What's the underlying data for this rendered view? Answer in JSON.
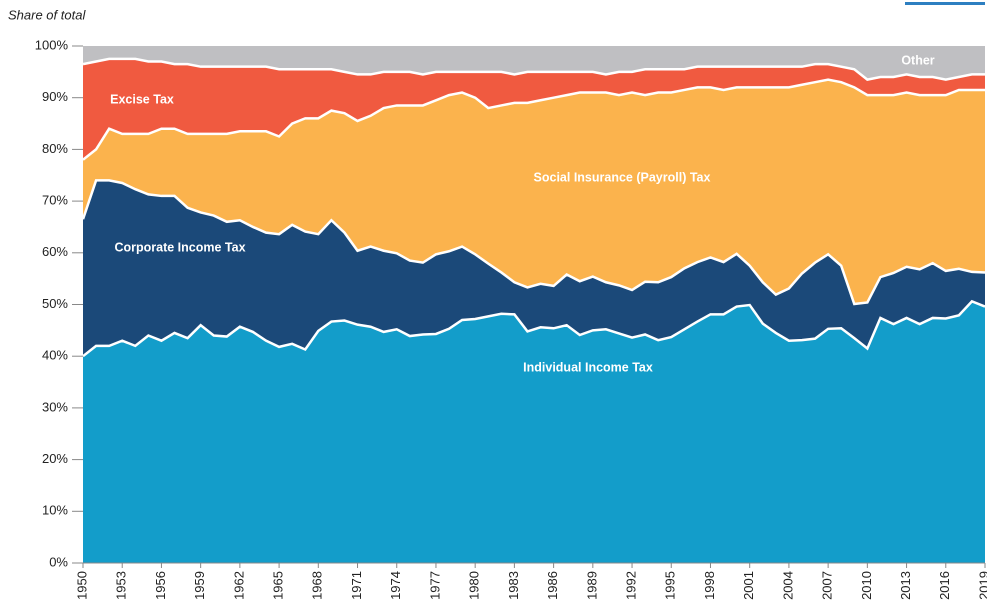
{
  "chart_data": {
    "type": "stacked_area",
    "y_label": "Share of total",
    "x": [
      1950,
      1951,
      1952,
      1953,
      1954,
      1955,
      1956,
      1957,
      1958,
      1959,
      1960,
      1961,
      1962,
      1963,
      1964,
      1965,
      1966,
      1967,
      1968,
      1969,
      1970,
      1971,
      1972,
      1973,
      1974,
      1975,
      1976,
      1977,
      1978,
      1979,
      1980,
      1981,
      1982,
      1983,
      1984,
      1985,
      1986,
      1987,
      1988,
      1989,
      1990,
      1991,
      1992,
      1993,
      1994,
      1995,
      1996,
      1997,
      1998,
      1999,
      2000,
      2001,
      2002,
      2003,
      2004,
      2005,
      2006,
      2007,
      2008,
      2009,
      2010,
      2011,
      2012,
      2013,
      2014,
      2015,
      2016,
      2017,
      2018,
      2019
    ],
    "xlim": [
      1950,
      2019
    ],
    "xticks": [
      1950,
      1953,
      1956,
      1959,
      1962,
      1965,
      1968,
      1971,
      1974,
      1977,
      1980,
      1983,
      1986,
      1989,
      1992,
      1995,
      1998,
      2001,
      2004,
      2007,
      2010,
      2013,
      2016,
      2019
    ],
    "ylim": [
      0,
      100
    ],
    "yticks": [
      {
        "value": 0,
        "label": "0%"
      },
      {
        "value": 10,
        "label": "10%"
      },
      {
        "value": 20,
        "label": "20%"
      },
      {
        "value": 30,
        "label": "30%"
      },
      {
        "value": 40,
        "label": "40%"
      },
      {
        "value": 50,
        "label": "50%"
      },
      {
        "value": 60,
        "label": "60%"
      },
      {
        "value": 70,
        "label": "70%"
      },
      {
        "value": 80,
        "label": "80%"
      },
      {
        "value": 90,
        "label": "90%"
      },
      {
        "value": 100,
        "label": "100%"
      }
    ],
    "series": [
      {
        "name": "Individual Income Tax",
        "color": "#139dca",
        "values": [
          40,
          42,
          42,
          43,
          42,
          44,
          43,
          44.5,
          43.5,
          46,
          44,
          43.8,
          45.7,
          44.7,
          43,
          41.8,
          42.4,
          41.3,
          44.9,
          46.7,
          46.9,
          46.1,
          45.7,
          44.7,
          45.2,
          43.9,
          44.2,
          44.3,
          45.3,
          47,
          47.2,
          47.7,
          48.2,
          48.1,
          44.8,
          45.6,
          45.4,
          46,
          44.1,
          45,
          45.2,
          44.4,
          43.6,
          44.2,
          43.1,
          43.7,
          45.2,
          46.7,
          48.1,
          48.1,
          49.6,
          49.9,
          46.3,
          44.5,
          43,
          43.1,
          43.4,
          45.3,
          45.4,
          43.5,
          41.5,
          47.4,
          46.2,
          47.4,
          46.2,
          47.4,
          47.3,
          47.9,
          50.6,
          49.6
        ]
      },
      {
        "name": "Corporate Income Tax",
        "color": "#1b4979",
        "values": [
          26.5,
          32,
          32,
          30.5,
          30.3,
          27.3,
          28,
          26.5,
          25.2,
          21.8,
          23.2,
          22.2,
          20.6,
          20.3,
          20.9,
          21.8,
          23,
          22.8,
          18.7,
          19.6,
          17,
          14.3,
          15.5,
          15.7,
          14.7,
          14.6,
          13.9,
          15.4,
          15,
          14.2,
          12.5,
          10.2,
          8,
          6.2,
          8.5,
          8.4,
          8.2,
          9.8,
          10.4,
          10.4,
          9.1,
          9.3,
          9.2,
          10.2,
          11.2,
          11.6,
          11.8,
          11.5,
          11,
          10.1,
          10.2,
          7.6,
          8,
          7.4,
          10.1,
          12.9,
          14.7,
          14.4,
          12.1,
          6.6,
          8.9,
          7.9,
          9.9,
          9.9,
          10.6,
          10.6,
          9.2,
          9,
          5.7,
          6.6
        ]
      },
      {
        "name": "Social Insurance (Payroll) Tax",
        "color": "#fbb34d",
        "values": [
          11.5,
          6,
          10,
          9.5,
          10.7,
          11.7,
          13,
          13,
          14.3,
          15.2,
          15.8,
          17,
          17.2,
          18.5,
          19.6,
          18.9,
          19.6,
          21.9,
          22.4,
          21.2,
          23.1,
          25.1,
          25.3,
          27.6,
          28.6,
          30,
          30.4,
          29.8,
          30.2,
          29.8,
          30.3,
          30.1,
          32.3,
          34.7,
          35.7,
          35.5,
          36.4,
          34.7,
          36.5,
          35.6,
          36.7,
          36.8,
          38.2,
          36.1,
          36.7,
          35.7,
          34.5,
          33.8,
          32.9,
          33.3,
          32.2,
          34.5,
          37.7,
          40.1,
          38.9,
          36.5,
          34.9,
          33.8,
          35.5,
          41.9,
          40.1,
          35.2,
          34.4,
          33.7,
          33.7,
          32.5,
          34,
          34.6,
          35.2,
          35.3
        ]
      },
      {
        "name": "Excise Tax",
        "color": "#f05a40",
        "values": [
          18.5,
          17,
          13.5,
          14.5,
          14.5,
          14,
          13,
          12.5,
          13.5,
          13,
          13,
          13,
          12.5,
          12.5,
          12.5,
          13,
          10.5,
          9.5,
          9.5,
          8,
          8,
          9,
          8,
          7,
          6.5,
          6.5,
          6,
          5.5,
          4.5,
          4,
          5,
          7,
          6.5,
          5.5,
          6,
          5.5,
          5,
          4.5,
          4,
          4,
          3.5,
          4.5,
          4,
          5,
          4.5,
          4.5,
          4,
          4,
          4,
          4.5,
          4,
          4,
          4,
          4,
          4,
          3.5,
          3.5,
          3,
          3,
          3.5,
          3,
          3.5,
          3.5,
          3.5,
          3.5,
          3.5,
          3,
          2.5,
          3,
          3
        ]
      },
      {
        "name": "Other",
        "color": "#bfbfc2",
        "values": [
          3.5,
          3,
          2.5,
          2.5,
          2.5,
          3,
          3,
          3.5,
          3.5,
          4,
          4,
          4,
          4,
          4,
          4,
          4.5,
          4.5,
          4.5,
          4.5,
          4.5,
          5,
          5.5,
          5.5,
          5,
          5,
          5,
          5.5,
          5,
          5,
          5,
          5,
          5,
          5,
          5.5,
          5,
          5,
          5,
          5,
          5,
          5,
          5.5,
          5,
          5,
          4.5,
          4.5,
          4.5,
          4.5,
          4,
          4,
          4,
          4,
          4,
          4,
          4,
          4,
          4,
          3.5,
          3.5,
          4,
          4.5,
          6.5,
          6,
          6,
          5.5,
          6,
          6,
          6.5,
          6,
          5.5,
          5.5
        ]
      }
    ]
  }
}
